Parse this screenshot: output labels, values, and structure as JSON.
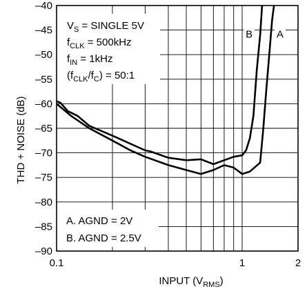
{
  "chart_data": {
    "type": "line",
    "xlabel": "INPUT (V",
    "xlabel_sub": "RMS",
    "xlabel_end": ")",
    "ylabel": "THD + NOISE (dB)",
    "xscale": "log",
    "xlim": [
      0.1,
      2
    ],
    "ylim": [
      -90,
      -40
    ],
    "grid": true,
    "x_ticks": [
      {
        "value": 0.1,
        "label": "0.1"
      },
      {
        "value": 1,
        "label": "1"
      },
      {
        "value": 2,
        "label": "2"
      }
    ],
    "y_ticks": [
      {
        "value": -40,
        "label": "–40"
      },
      {
        "value": -45,
        "label": "–45"
      },
      {
        "value": -50,
        "label": "–50"
      },
      {
        "value": -55,
        "label": "–55"
      },
      {
        "value": -60,
        "label": "–60"
      },
      {
        "value": -65,
        "label": "–65"
      },
      {
        "value": -70,
        "label": "–70"
      },
      {
        "value": -75,
        "label": "–75"
      },
      {
        "value": -80,
        "label": "–80"
      },
      {
        "value": -85,
        "label": "–85"
      },
      {
        "value": -90,
        "label": "–90"
      }
    ],
    "conditions": [
      {
        "main": "V",
        "sub": "S",
        "rest": " = SINGLE 5V"
      },
      {
        "main": "f",
        "sub": "CLK",
        "rest": " = 500kHz"
      },
      {
        "main": "f",
        "sub": "IN",
        "rest": " = 1kHz"
      },
      {
        "main": "(f",
        "sub": "CLK",
        "rest": "/f",
        "sub2": "C",
        "rest2": ") = 50:1"
      }
    ],
    "legend_notes": [
      "A. AGND = 2V",
      "B. AGND = 2.5V"
    ],
    "series": [
      {
        "name": "A",
        "x": [
          0.1,
          0.12,
          0.15,
          0.2,
          0.25,
          0.3,
          0.4,
          0.5,
          0.6,
          0.7,
          0.8,
          0.9,
          1.0,
          1.1,
          1.25,
          1.3,
          1.35,
          1.4,
          1.45,
          1.5
        ],
        "y": [
          -60,
          -62.5,
          -65,
          -67.5,
          -69.5,
          -70.8,
          -72.5,
          -73.5,
          -74.3,
          -73.5,
          -72.5,
          -73,
          -74.3,
          -73.8,
          -72,
          -65,
          -57,
          -50,
          -43,
          -38
        ]
      },
      {
        "name": "B",
        "x": [
          0.1,
          0.105,
          0.115,
          0.13,
          0.15,
          0.2,
          0.3,
          0.32,
          0.4,
          0.5,
          0.6,
          0.7,
          0.8,
          0.9,
          1.0,
          1.05,
          1.1,
          1.15,
          1.2,
          1.25,
          1.28
        ],
        "y": [
          -59.5,
          -59.8,
          -61.5,
          -62.5,
          -64.5,
          -66.5,
          -69.5,
          -69.7,
          -71,
          -71.5,
          -71.3,
          -72.3,
          -71.5,
          -70.8,
          -70.5,
          -69.5,
          -67,
          -62.5,
          -53,
          -46,
          -40
        ]
      }
    ],
    "curve_labels": [
      {
        "series": "B",
        "text": "B",
        "at_x": 1.09,
        "at_y": -46.5
      },
      {
        "series": "A",
        "text": "A",
        "at_x": 1.6,
        "at_y": -46.5
      }
    ]
  }
}
